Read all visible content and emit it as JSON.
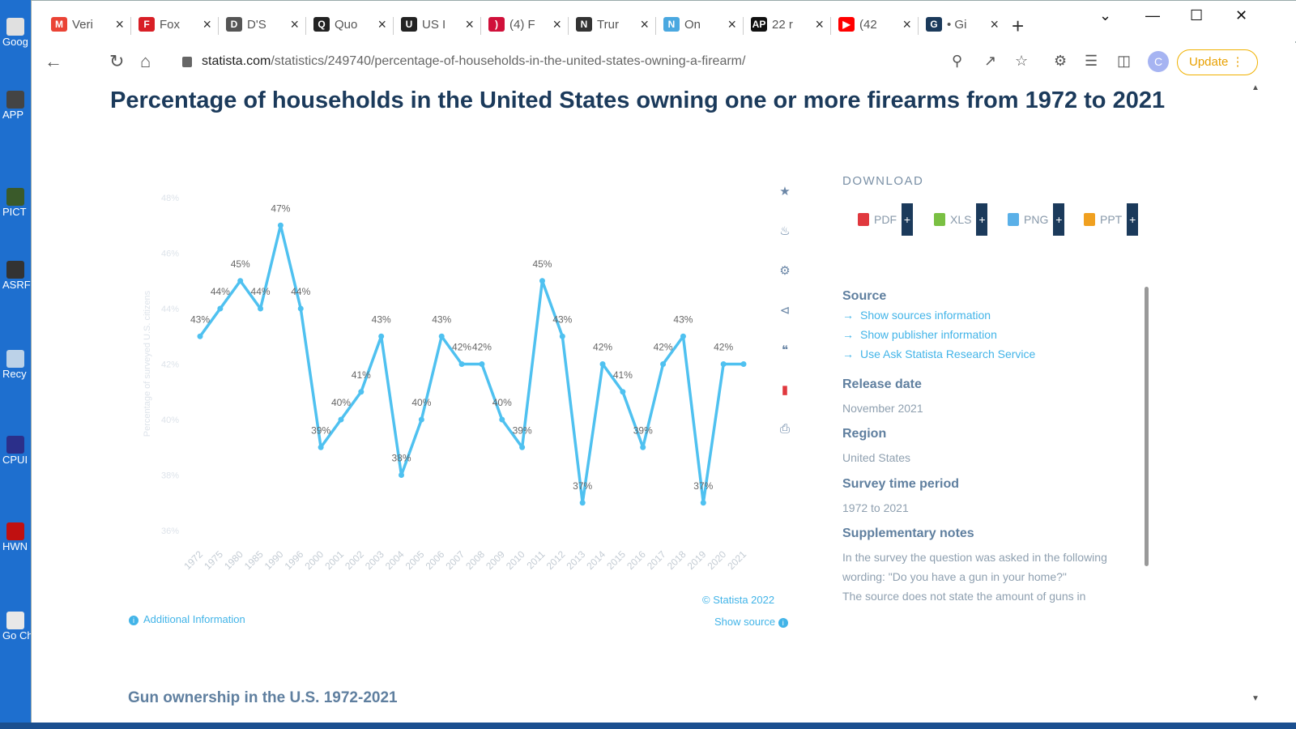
{
  "desktop": {
    "icons": [
      {
        "label": "Goog",
        "color": "#e0e0e0"
      },
      {
        "label": "APP",
        "color": "#444444"
      },
      {
        "label": "PICT",
        "color": "#3a5a2a"
      },
      {
        "label": "ASRF",
        "color": "#333333"
      },
      {
        "label": "Recy",
        "color": "#bcd2e8"
      },
      {
        "label": "CPUI",
        "color": "#2b2f8a"
      },
      {
        "label": "HWN",
        "color": "#c01010"
      },
      {
        "label": "Go Ch",
        "color": "#e8e8e8"
      }
    ]
  },
  "tabs": [
    {
      "title": "Veri",
      "icon": "gmail-icon",
      "color": "#ea4335",
      "glyph": "M"
    },
    {
      "title": "Fox",
      "icon": "fox-icon",
      "color": "#d81f26",
      "glyph": "F"
    },
    {
      "title": "D'S",
      "icon": "ds-icon",
      "color": "#555555",
      "glyph": "D"
    },
    {
      "title": "Quo",
      "icon": "eagle-icon",
      "color": "#222222",
      "glyph": "Q"
    },
    {
      "title": "US I",
      "icon": "eagle-icon",
      "color": "#222222",
      "glyph": "U"
    },
    {
      "title": "(4) F",
      "icon": "face-icon",
      "color": "#d0103a",
      "glyph": ")"
    },
    {
      "title": "Trur",
      "icon": "nbc-icon",
      "color": "#333333",
      "glyph": "N"
    },
    {
      "title": "On",
      "icon": "nbc-icon",
      "color": "#4aa8e0",
      "glyph": "N"
    },
    {
      "title": "22 r",
      "icon": "ap-icon",
      "color": "#111111",
      "glyph": "AP"
    },
    {
      "title": "(42",
      "icon": "youtube-icon",
      "color": "#ff0000",
      "glyph": "▶"
    },
    {
      "title": "• Gi",
      "icon": "gi-icon",
      "color": "#1b3a5b",
      "glyph": "G"
    }
  ],
  "url": {
    "host": "statista.com",
    "path": "/statistics/249740/percentage-of-households-in-the-united-states-owning-a-firearm/"
  },
  "toolbar": {
    "avatar": "C",
    "update_label": "Update"
  },
  "page": {
    "title": "Percentage of households in the United States owning one or more firearms from 1972 to 2021",
    "copyright": "© Statista 2022",
    "show_source": "Show source",
    "additional_info": "Additional Information",
    "next_heading": "Gun ownership in the U.S. 1972-2021"
  },
  "download": {
    "heading": "DOWNLOAD",
    "formats": [
      {
        "label": "PDF",
        "color": "#e0383e"
      },
      {
        "label": "XLS",
        "color": "#7ac043"
      },
      {
        "label": "PNG",
        "color": "#5ab0e8"
      },
      {
        "label": "PPT",
        "color": "#f0a020"
      }
    ]
  },
  "meta": {
    "source_h": "Source",
    "links": [
      "Show sources information",
      "Show publisher information",
      "Use Ask Statista Research Service"
    ],
    "release_h": "Release date",
    "release_v": "November 2021",
    "region_h": "Region",
    "region_v": "United States",
    "period_h": "Survey time period",
    "period_v": "1972 to 2021",
    "notes_h": "Supplementary notes",
    "notes_v1": "In the survey the question was asked in the following wording: \"Do you have a gun in your home?\"",
    "notes_v2": "The source does not state the amount of guns in"
  },
  "chart_data": {
    "type": "line",
    "title": "",
    "xlabel": "",
    "ylabel": "Percentage of surveyed U.S. citizens",
    "ylim": [
      36,
      48
    ],
    "yticks": [
      "36%",
      "38%",
      "40%",
      "42%",
      "44%",
      "46%",
      "48%"
    ],
    "categories": [
      "1972",
      "1975",
      "1980",
      "1985",
      "1990",
      "1996",
      "2000",
      "2001",
      "2002",
      "2003",
      "2004",
      "2005",
      "2006",
      "2007",
      "2008",
      "2009",
      "2010",
      "2011",
      "2012",
      "2013",
      "2014",
      "2015",
      "2016",
      "2017",
      "2018",
      "2019",
      "2020",
      "2021"
    ],
    "values": [
      43,
      44,
      45,
      44,
      47,
      44,
      39,
      40,
      41,
      43,
      38,
      40,
      43,
      42,
      42,
      40,
      39,
      45,
      43,
      37,
      42,
      41,
      39,
      42,
      43,
      37,
      42,
      42
    ],
    "labels": [
      "43%",
      "44%",
      "45%",
      "44%",
      "47%",
      "44%",
      "39%",
      "40%",
      "41%",
      "43%",
      "38%",
      "40%",
      "43%",
      "42%",
      "42%",
      "40%",
      "39%",
      "45%",
      "43%",
      "37%",
      "42%",
      "41%",
      "39%",
      "42%",
      "43%",
      "37%",
      "42%",
      ""
    ],
    "color": "#4fc1f0",
    "grid": false
  }
}
